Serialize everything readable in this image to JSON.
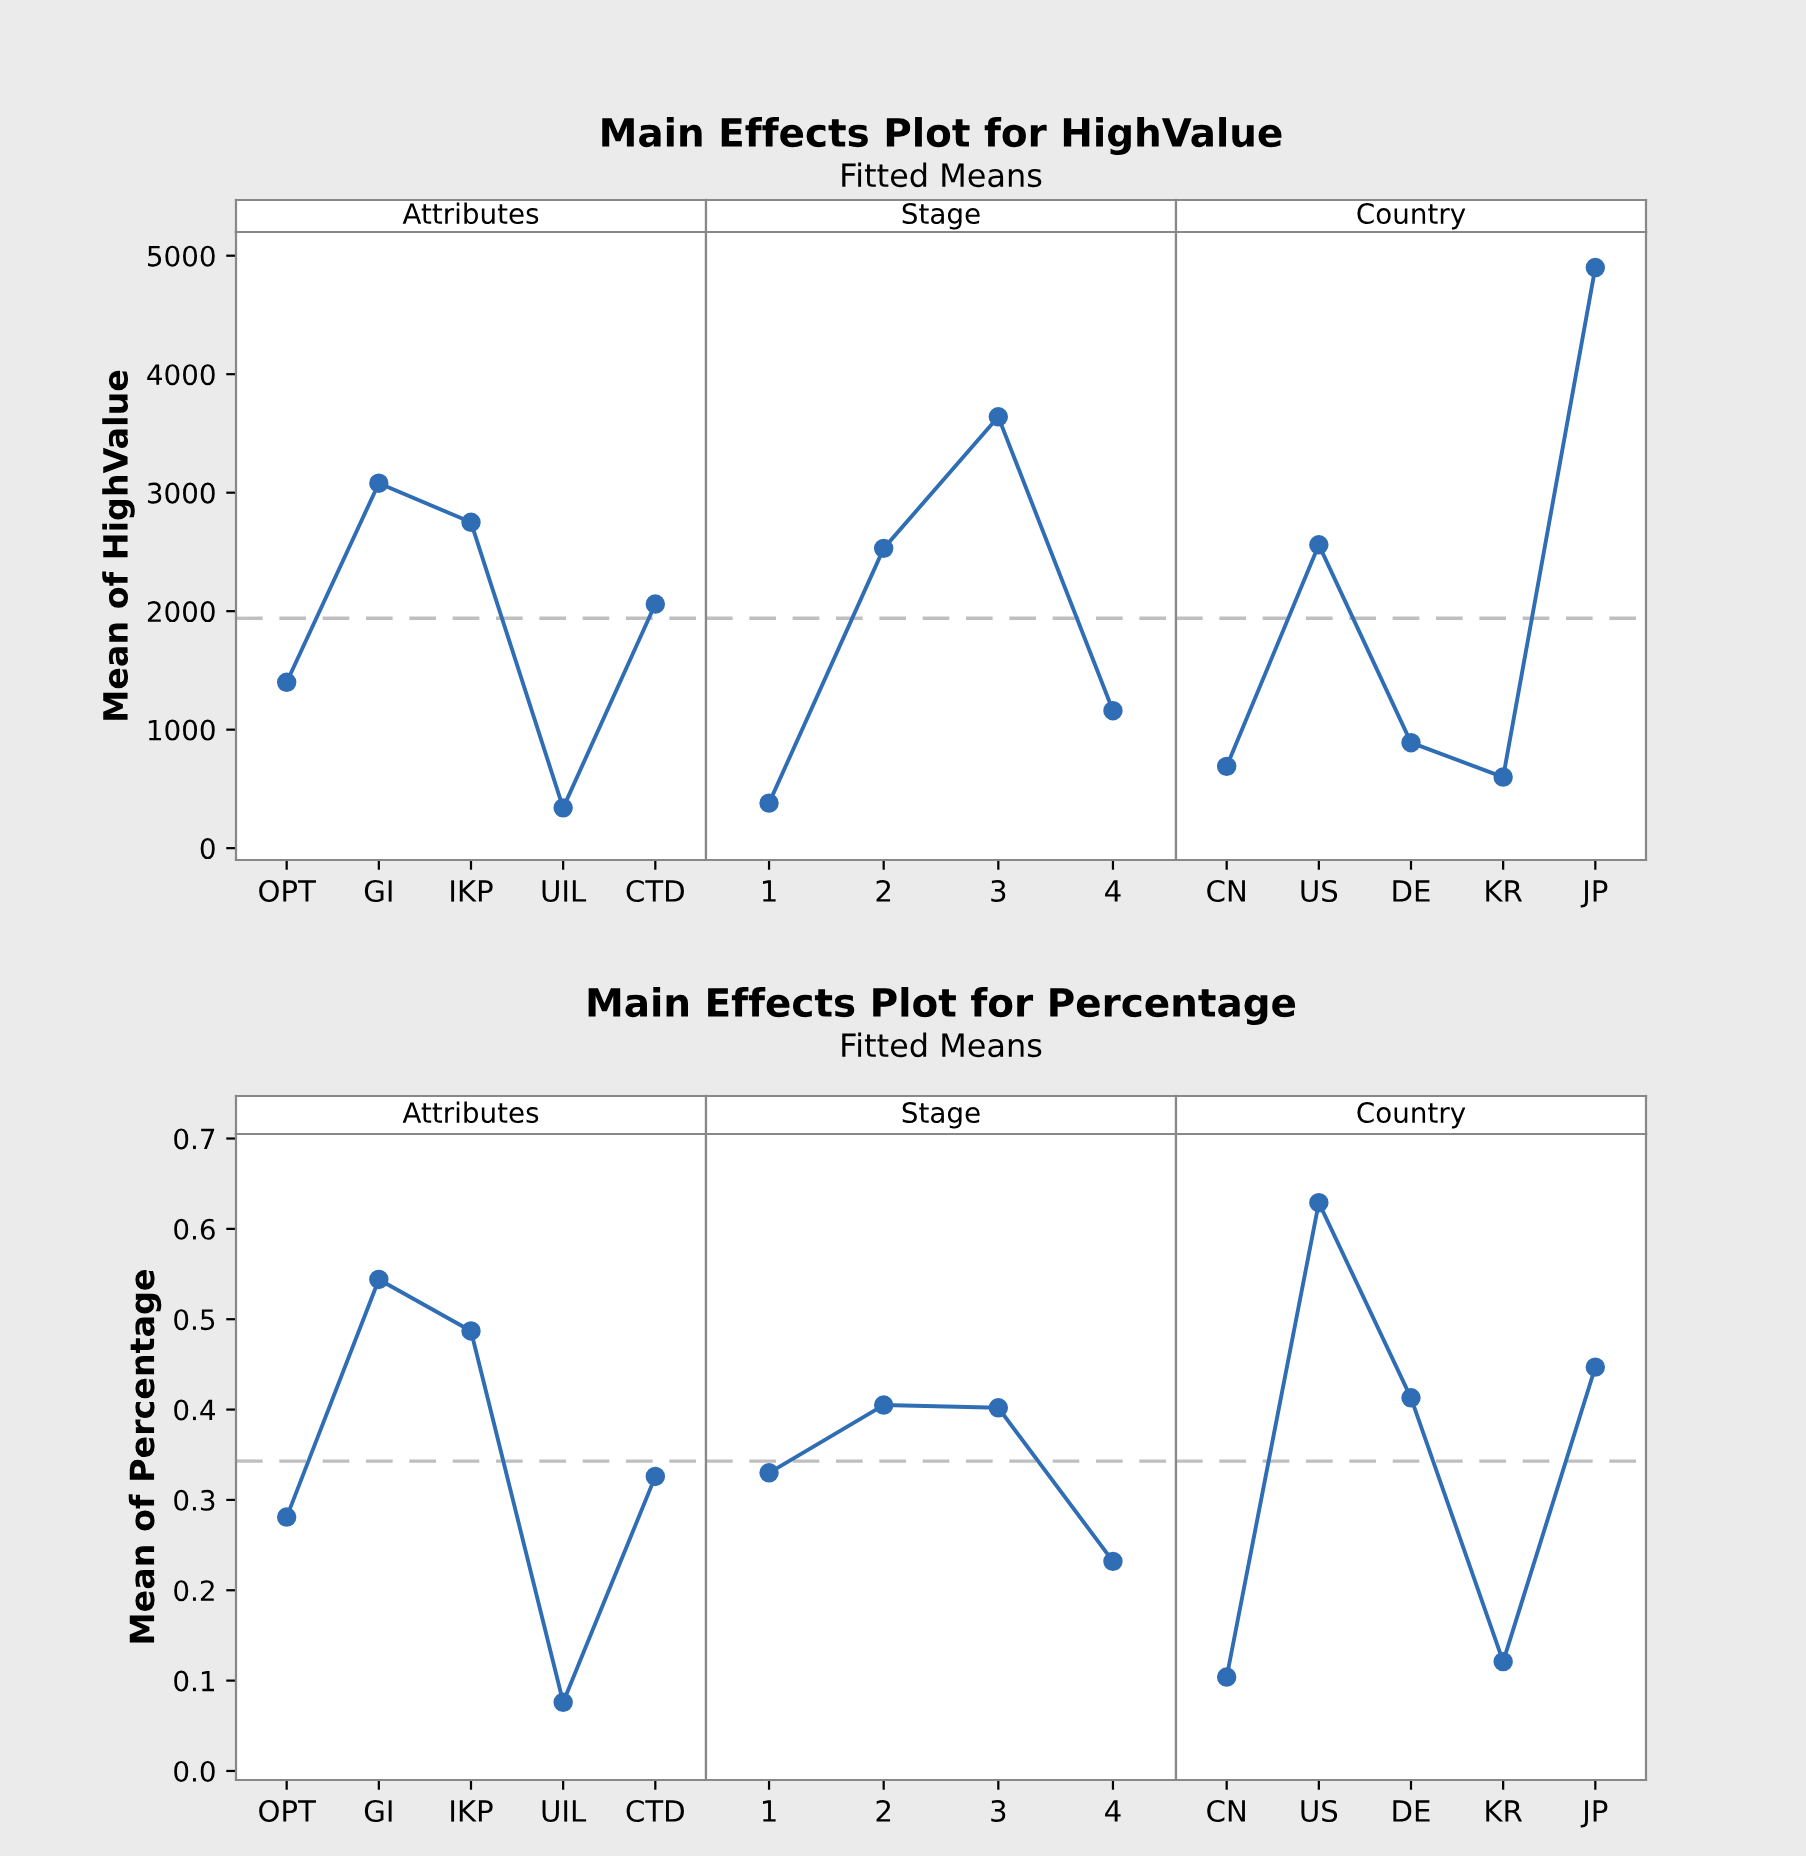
{
  "chart_data": [
    {
      "type": "line",
      "title": "Attributes",
      "ylabel": "Mean of HighValue",
      "annotations": [
        "Main Effects Plot for HighValue",
        "Fitted Means"
      ],
      "categories": [
        "OPT",
        "GI",
        "IKP",
        "UIL",
        "CTD"
      ],
      "series": [
        {
          "color": "#2f6db5",
          "values": [
            1400,
            3080,
            2750,
            340,
            2060
          ]
        }
      ],
      "ylim": [
        -100,
        5200
      ],
      "yticks": [
        0,
        1000,
        2000,
        3000,
        4000,
        5000
      ],
      "ref_lines": [
        {
          "axis": "y",
          "value": 1940,
          "color": "#bfbfbf",
          "line_style": "dashed"
        }
      ],
      "marker": "circle",
      "line_style": "solid",
      "grid": false,
      "legend": false
    },
    {
      "type": "line",
      "title": "Stage",
      "categories": [
        "1",
        "2",
        "3",
        "4"
      ],
      "series": [
        {
          "color": "#2f6db5",
          "values": [
            380,
            2530,
            3640,
            1160
          ]
        }
      ],
      "ylim": [
        -100,
        5200
      ],
      "tick_labels": "x",
      "ref_lines": [
        {
          "axis": "y",
          "value": 1940,
          "color": "#bfbfbf",
          "line_style": "dashed"
        }
      ],
      "marker": "circle",
      "line_style": "solid",
      "grid": false,
      "legend": false
    },
    {
      "type": "line",
      "title": "Country",
      "categories": [
        "CN",
        "US",
        "DE",
        "KR",
        "JP"
      ],
      "series": [
        {
          "color": "#2f6db5",
          "values": [
            690,
            2560,
            890,
            600,
            4900
          ]
        }
      ],
      "ylim": [
        -100,
        5200
      ],
      "tick_labels": "x",
      "ref_lines": [
        {
          "axis": "y",
          "value": 1940,
          "color": "#bfbfbf",
          "line_style": "dashed"
        }
      ],
      "marker": "circle",
      "line_style": "solid",
      "grid": false,
      "legend": false
    },
    {
      "type": "line",
      "title": "Attributes",
      "ylabel": "Mean of Percentage",
      "annotations": [
        "Main Effects Plot for Percentage",
        "Fitted Means"
      ],
      "categories": [
        "OPT",
        "GI",
        "IKP",
        "UIL",
        "CTD"
      ],
      "series": [
        {
          "color": "#2f6db5",
          "values": [
            0.281,
            0.544,
            0.487,
            0.076,
            0.326
          ]
        }
      ],
      "ylim": [
        -0.01,
        0.705
      ],
      "yticks": [
        {
          "value": 0,
          "label": "0.0"
        },
        0.1,
        0.2,
        0.3,
        0.4,
        0.5,
        0.6,
        0.7
      ],
      "ref_lines": [
        {
          "axis": "y",
          "value": 0.343,
          "color": "#bfbfbf",
          "line_style": "dashed"
        }
      ],
      "marker": "circle",
      "line_style": "solid",
      "grid": false,
      "legend": false
    },
    {
      "type": "line",
      "title": "Stage",
      "categories": [
        "1",
        "2",
        "3",
        "4"
      ],
      "series": [
        {
          "color": "#2f6db5",
          "values": [
            0.33,
            0.405,
            0.402,
            0.232
          ]
        }
      ],
      "ylim": [
        -0.01,
        0.705
      ],
      "tick_labels": "x",
      "ref_lines": [
        {
          "axis": "y",
          "value": 0.343,
          "color": "#bfbfbf",
          "line_style": "dashed"
        }
      ],
      "marker": "circle",
      "line_style": "solid",
      "grid": false,
      "legend": false
    },
    {
      "type": "line",
      "title": "Country",
      "categories": [
        "CN",
        "US",
        "DE",
        "KR",
        "JP"
      ],
      "series": [
        {
          "color": "#2f6db5",
          "values": [
            0.104,
            0.629,
            0.413,
            0.121,
            0.447
          ]
        }
      ],
      "ylim": [
        -0.01,
        0.705
      ],
      "tick_labels": "x",
      "ref_lines": [
        {
          "axis": "y",
          "value": 0.343,
          "color": "#bfbfbf",
          "line_style": "dashed"
        }
      ],
      "marker": "circle",
      "line_style": "solid",
      "grid": false,
      "legend": false
    }
  ]
}
